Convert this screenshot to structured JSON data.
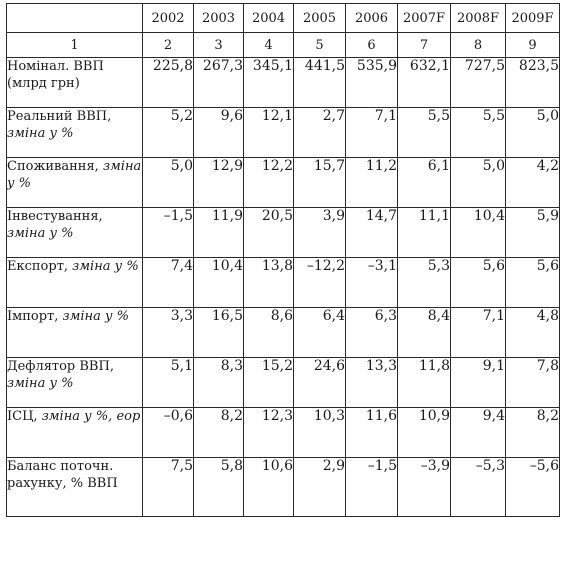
{
  "table": {
    "years": [
      "2002",
      "2003",
      "2004",
      "2005",
      "2006",
      "2007F",
      "2008F",
      "2009F"
    ],
    "col_numbers": [
      "1",
      "2",
      "3",
      "4",
      "5",
      "6",
      "7",
      "8",
      "9"
    ],
    "rows": [
      {
        "label_main": "Номінал. ВВП (млрд грн)",
        "label_unit": "",
        "values": [
          "225,8",
          "267,3",
          "345,1",
          "441,5",
          "535,9",
          "632,1",
          "727,5",
          "823,5"
        ]
      },
      {
        "label_main": "Реальний ВВП, ",
        "label_unit": "зміна у %",
        "values": [
          "5,2",
          "9,6",
          "12,1",
          "2,7",
          "7,1",
          "5,5",
          "5,5",
          "5,0"
        ]
      },
      {
        "label_main": "Споживання, ",
        "label_unit": "зміна у %",
        "values": [
          "5,0",
          "12,9",
          "12,2",
          "15,7",
          "11,2",
          "6,1",
          "5,0",
          "4,2"
        ]
      },
      {
        "label_main": "Інвестування, ",
        "label_unit": "зміна у %",
        "values": [
          "–1,5",
          "11,9",
          "20,5",
          "3,9",
          "14,7",
          "11,1",
          "10,4",
          "5,9"
        ]
      },
      {
        "label_main": "Експорт, ",
        "label_unit": "зміна у %",
        "values": [
          "7,4",
          "10,4",
          "13,8",
          "–12,2",
          "–3,1",
          "5,3",
          "5,6",
          "5,6"
        ]
      },
      {
        "label_main": "Імпорт, ",
        "label_unit": "зміна у %",
        "values": [
          "3,3",
          "16,5",
          "8,6",
          "6,4",
          "6,3",
          "8,4",
          "7,1",
          "4,8"
        ]
      },
      {
        "label_main": "Дефлятор ВВП, ",
        "label_unit": "зміна у %",
        "values": [
          "5,1",
          "8,3",
          "15,2",
          "24,6",
          "13,3",
          "11,8",
          "9,1",
          "7,8"
        ]
      },
      {
        "label_main": "ІСЦ, ",
        "label_unit": "зміна у %, еор",
        "values": [
          "–0,6",
          "8,2",
          "12,3",
          "10,3",
          "11,6",
          "10,9",
          "9,4",
          "8,2"
        ]
      },
      {
        "label_main": "Баланс поточн. рахунку, % ВВП",
        "label_unit": "",
        "values": [
          "7,5",
          "5,8",
          "10,6",
          "2,9",
          "–1,5",
          "–3,9",
          "–5,3",
          "–5,6"
        ]
      }
    ]
  }
}
